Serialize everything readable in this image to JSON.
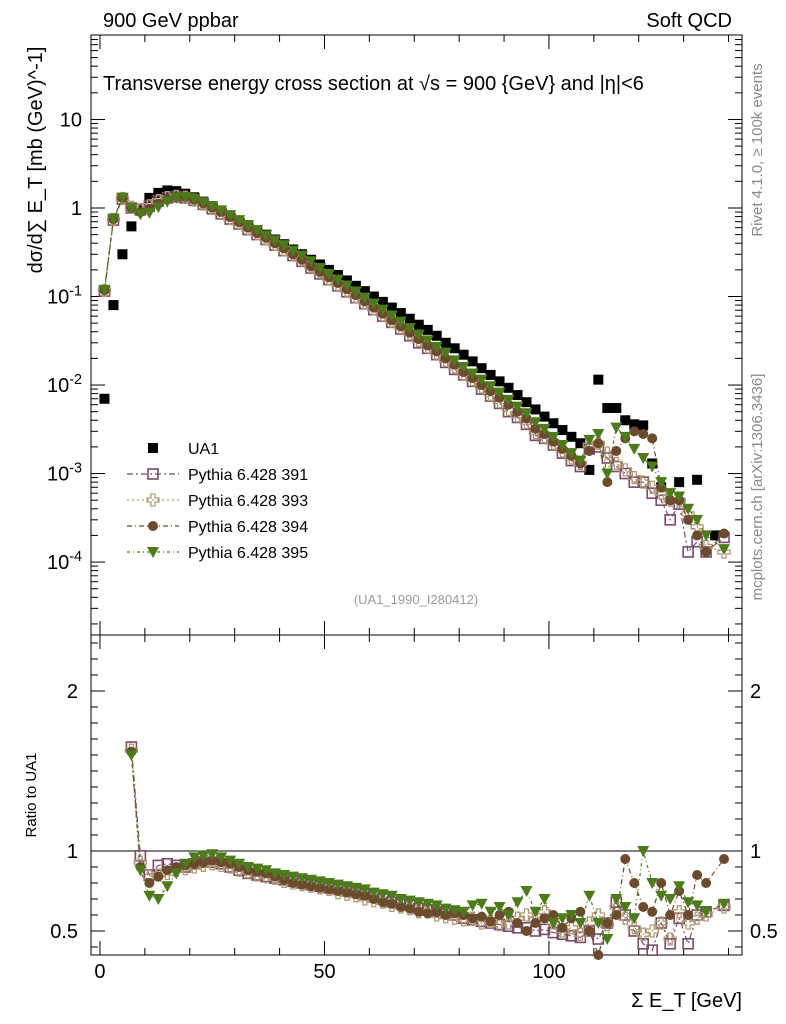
{
  "header": {
    "left": "900 GeV ppbar",
    "right": "Soft QCD"
  },
  "side": {
    "rivet": "Rivet 4.1.0, ≥ 100k events",
    "mcplots": "mcplots.cern.ch [arXiv:1306.3436]"
  },
  "colors": {
    "ua1": "#000000",
    "p391": "#7a4b6a",
    "p393": "#b09a70",
    "p394": "#6b4a2e",
    "p395": "#4d7a1a"
  },
  "chart_data": [
    {
      "panel": "main",
      "type": "scatter",
      "title": "Transverse energy cross section at √s = 900 {GeV} and |η|<6",
      "ylabel": "dσ/d∑ E_T [mb (GeV)^-1]",
      "xlabel": "Σ E_T [GeV]",
      "yscale": "log",
      "xlim": [
        -2,
        143
      ],
      "ylim": [
        1.5e-05,
        90
      ],
      "yticks": [
        {
          "v": 0.0001,
          "label": "10^-4"
        },
        {
          "v": 0.001,
          "label": "10^-3"
        },
        {
          "v": 0.01,
          "label": "10^-2"
        },
        {
          "v": 0.1,
          "label": "10^-1"
        },
        {
          "v": 1,
          "label": "1"
        },
        {
          "v": 10,
          "label": "10"
        }
      ],
      "watermark": "(UA1_1990_I280412)",
      "legend": [
        "UA1",
        "Pythia 6.428 391",
        "Pythia 6.428 393",
        "Pythia 6.428 394",
        "Pythia 6.428 395"
      ],
      "x": [
        1,
        3,
        5,
        7,
        9,
        11,
        13,
        15,
        17,
        19,
        21,
        23,
        25,
        27,
        29,
        31,
        33,
        35,
        37,
        39,
        41,
        43,
        45,
        47,
        49,
        51,
        53,
        55,
        57,
        59,
        61,
        63,
        65,
        67,
        69,
        71,
        73,
        75,
        77,
        79,
        81,
        83,
        85,
        87,
        89,
        91,
        93,
        95,
        97,
        99,
        101,
        103,
        105,
        107,
        109,
        111,
        113,
        115,
        117,
        119,
        121,
        123,
        125,
        127,
        129,
        131,
        133,
        135,
        137,
        139,
        141
      ],
      "series": [
        {
          "name": "UA1",
          "values": [
            0.007,
            0.08,
            0.3,
            0.62,
            0.96,
            1.3,
            1.48,
            1.58,
            1.55,
            1.45,
            1.32,
            1.18,
            1.05,
            0.92,
            0.82,
            0.72,
            0.64,
            0.56,
            0.5,
            0.44,
            0.39,
            0.34,
            0.3,
            0.26,
            0.23,
            0.2,
            0.175,
            0.152,
            0.132,
            0.115,
            0.1,
            0.087,
            0.075,
            0.065,
            0.056,
            0.048,
            0.042,
            0.036,
            0.03,
            0.026,
            0.022,
            0.0185,
            0.0155,
            0.013,
            0.011,
            0.0093,
            0.0077,
            0.0064,
            0.0053,
            0.0044,
            0.0037,
            0.0031,
            0.0026,
            0.0022,
            0.0011,
            0.0115,
            0.0055,
            0.0055,
            0.004,
            0.0036,
            0.0035,
            0.0013,
            0.0007,
            null,
            0.0008,
            null,
            0.00085,
            null,
            0.0002,
            null,
            null
          ]
        },
        {
          "name": "Pythia 6.428 391",
          "values": [
            0.115,
            0.73,
            1.26,
            1.0,
            0.95,
            1.05,
            1.2,
            1.3,
            1.34,
            1.3,
            1.22,
            1.1,
            0.98,
            0.86,
            0.75,
            0.66,
            0.57,
            0.5,
            0.44,
            0.38,
            0.33,
            0.29,
            0.25,
            0.21,
            0.18,
            0.155,
            0.132,
            0.113,
            0.097,
            0.083,
            0.071,
            0.06,
            0.051,
            0.043,
            0.036,
            0.03,
            0.026,
            0.022,
            0.018,
            0.015,
            0.013,
            0.011,
            0.009,
            0.0075,
            0.0062,
            0.005,
            0.0043,
            0.0036,
            0.0027,
            0.0025,
            0.0021,
            0.0017,
            0.0014,
            0.0012,
            0.0019,
            0.002,
            0.0015,
            0.0012,
            0.001,
            0.0008,
            0.0008,
            0.0006,
            0.0005,
            0.0003,
            0.00045,
            0.00013,
            0.00017,
            0.00013,
            null,
            0.00019,
            null
          ]
        },
        {
          "name": "Pythia 6.428 393",
          "values": [
            0.117,
            0.74,
            1.28,
            1.02,
            0.96,
            1.06,
            1.21,
            1.31,
            1.35,
            1.32,
            1.23,
            1.11,
            0.99,
            0.87,
            0.76,
            0.67,
            0.58,
            0.51,
            0.45,
            0.39,
            0.34,
            0.3,
            0.26,
            0.22,
            0.19,
            0.16,
            0.137,
            0.118,
            0.1,
            0.086,
            0.073,
            0.062,
            0.053,
            0.045,
            0.038,
            0.032,
            0.027,
            0.023,
            0.019,
            0.016,
            0.0135,
            0.0115,
            0.0095,
            0.0078,
            0.0065,
            0.0053,
            0.0045,
            0.0038,
            0.0029,
            0.0026,
            0.0022,
            0.0018,
            0.0015,
            0.0013,
            0.0021,
            0.0022,
            0.0017,
            0.0013,
            0.0011,
            0.0009,
            0.0008,
            0.0007,
            0.0006,
            0.0005,
            0.0005,
            0.00035,
            0.00025,
            0.00015,
            null,
            0.00013,
            null
          ]
        },
        {
          "name": "Pythia 6.428 394",
          "values": [
            0.118,
            0.75,
            1.3,
            1.0,
            0.9,
            0.98,
            1.12,
            1.26,
            1.34,
            1.33,
            1.25,
            1.13,
            1.01,
            0.9,
            0.79,
            0.69,
            0.6,
            0.52,
            0.46,
            0.4,
            0.35,
            0.3,
            0.26,
            0.22,
            0.19,
            0.165,
            0.142,
            0.121,
            0.104,
            0.088,
            0.075,
            0.064,
            0.054,
            0.046,
            0.039,
            0.033,
            0.028,
            0.024,
            0.02,
            0.017,
            0.014,
            0.012,
            0.01,
            0.0085,
            0.0072,
            0.006,
            0.005,
            0.0042,
            0.0032,
            0.0028,
            0.0023,
            0.0019,
            0.0016,
            0.0013,
            0.0018,
            0.0022,
            0.0008,
            0.0018,
            0.0025,
            0.003,
            0.0028,
            0.0025,
            0.0007,
            0.0005,
            0.0005,
            0.0003,
            0.0002,
            0.00013,
            null,
            0.00021,
            null
          ]
        },
        {
          "name": "Pythia 6.428 395",
          "values": [
            0.119,
            0.76,
            1.31,
            1.0,
            0.85,
            0.88,
            1.02,
            1.18,
            1.3,
            1.33,
            1.27,
            1.16,
            1.05,
            0.94,
            0.83,
            0.73,
            0.64,
            0.56,
            0.49,
            0.43,
            0.38,
            0.33,
            0.29,
            0.25,
            0.21,
            0.18,
            0.155,
            0.133,
            0.114,
            0.097,
            0.083,
            0.071,
            0.061,
            0.052,
            0.044,
            0.037,
            0.032,
            0.027,
            0.023,
            0.019,
            0.016,
            0.0135,
            0.0115,
            0.0097,
            0.0082,
            0.0068,
            0.0057,
            0.0048,
            0.0038,
            0.0032,
            0.0026,
            0.0021,
            0.0017,
            0.0014,
            0.0024,
            0.0028,
            0.001,
            0.0033,
            0.0026,
            0.0019,
            0.0015,
            0.0012,
            0.0008,
            0.0006,
            0.00055,
            0.0004,
            0.0003,
            0.0002,
            null,
            0.00014,
            null
          ]
        }
      ]
    },
    {
      "panel": "ratio",
      "type": "scatter",
      "ylabel": "Ratio to UA1",
      "xlabel": "Σ E_T [GeV]",
      "xlim": [
        -2,
        143
      ],
      "ylim": [
        0.35,
        2.35
      ],
      "yticks": [
        {
          "v": 0.5,
          "label": "0.5"
        },
        {
          "v": 1,
          "label": "1"
        },
        {
          "v": 2,
          "label": "2"
        }
      ],
      "xticks": [
        {
          "v": 0,
          "label": "0"
        },
        {
          "v": 50,
          "label": "50"
        },
        {
          "v": 100,
          "label": "100"
        }
      ],
      "reference": 1,
      "x": [
        1,
        3,
        5,
        7,
        9,
        11,
        13,
        15,
        17,
        19,
        21,
        23,
        25,
        27,
        29,
        31,
        33,
        35,
        37,
        39,
        41,
        43,
        45,
        47,
        49,
        51,
        53,
        55,
        57,
        59,
        61,
        63,
        65,
        67,
        69,
        71,
        73,
        75,
        77,
        79,
        81,
        83,
        85,
        87,
        89,
        91,
        93,
        95,
        97,
        99,
        101,
        103,
        105,
        107,
        109,
        111,
        113,
        115,
        117,
        119,
        121,
        123,
        125,
        127,
        129,
        131,
        133,
        135,
        137,
        139,
        141
      ],
      "series": [
        {
          "name": "Pythia 6.428 391",
          "values": [
            null,
            null,
            null,
            1.65,
            0.97,
            0.85,
            0.91,
            0.92,
            0.91,
            0.9,
            0.92,
            0.93,
            0.93,
            0.92,
            0.9,
            0.88,
            0.86,
            0.85,
            0.84,
            0.83,
            0.82,
            0.81,
            0.8,
            0.79,
            0.78,
            0.77,
            0.76,
            0.75,
            0.74,
            0.73,
            0.72,
            0.7,
            0.68,
            0.67,
            0.66,
            0.64,
            0.63,
            0.62,
            0.61,
            0.6,
            0.58,
            0.57,
            0.56,
            0.55,
            0.54,
            0.53,
            0.52,
            0.52,
            0.5,
            0.51,
            0.49,
            0.48,
            0.47,
            0.46,
            0.5,
            0.45,
            0.55,
            0.68,
            0.6,
            0.5,
            0.42,
            0.38,
            0.55,
            0.42,
            0.58,
            0.42,
            0.6,
            0.62,
            null,
            0.66,
            null
          ]
        },
        {
          "name": "Pythia 6.428 393",
          "values": [
            null,
            null,
            null,
            1.63,
            0.93,
            0.84,
            0.85,
            0.86,
            0.88,
            0.89,
            0.9,
            0.91,
            0.92,
            0.91,
            0.9,
            0.88,
            0.87,
            0.85,
            0.84,
            0.83,
            0.81,
            0.8,
            0.79,
            0.78,
            0.77,
            0.76,
            0.74,
            0.73,
            0.72,
            0.7,
            0.69,
            0.68,
            0.66,
            0.65,
            0.64,
            0.62,
            0.62,
            0.6,
            0.59,
            0.58,
            0.57,
            0.58,
            0.55,
            0.56,
            0.54,
            0.55,
            0.58,
            0.6,
            0.57,
            0.62,
            0.55,
            0.5,
            0.52,
            0.48,
            0.55,
            0.6,
            0.54,
            0.65,
            0.58,
            0.52,
            0.48,
            0.5,
            0.55,
            0.45,
            0.62,
            0.55,
            0.58,
            0.6,
            null,
            0.65,
            null
          ]
        },
        {
          "name": "Pythia 6.428 394",
          "values": [
            null,
            null,
            null,
            1.62,
            0.9,
            0.8,
            0.84,
            0.88,
            0.9,
            0.91,
            0.92,
            0.93,
            0.94,
            0.93,
            0.92,
            0.9,
            0.88,
            0.87,
            0.86,
            0.84,
            0.82,
            0.8,
            0.79,
            0.78,
            0.77,
            0.76,
            0.75,
            0.74,
            0.73,
            0.72,
            0.7,
            0.68,
            0.67,
            0.65,
            0.64,
            0.62,
            0.61,
            0.62,
            0.6,
            0.61,
            0.6,
            0.58,
            0.59,
            0.56,
            0.6,
            0.62,
            0.55,
            0.5,
            0.55,
            0.58,
            0.6,
            0.52,
            0.58,
            0.62,
            0.5,
            0.35,
            0.55,
            0.6,
            0.95,
            0.8,
            0.65,
            0.62,
            0.8,
            0.6,
            0.75,
            0.6,
            0.85,
            0.8,
            null,
            0.95,
            null
          ]
        },
        {
          "name": "Pythia 6.428 395",
          "values": [
            null,
            null,
            null,
            1.6,
            0.88,
            0.72,
            0.7,
            0.78,
            0.86,
            0.92,
            0.96,
            0.97,
            0.98,
            0.96,
            0.94,
            0.92,
            0.9,
            0.89,
            0.88,
            0.86,
            0.85,
            0.84,
            0.83,
            0.82,
            0.81,
            0.8,
            0.79,
            0.78,
            0.77,
            0.76,
            0.74,
            0.73,
            0.72,
            0.7,
            0.69,
            0.68,
            0.67,
            0.66,
            0.64,
            0.63,
            0.62,
            0.66,
            0.67,
            0.62,
            0.65,
            0.6,
            0.68,
            0.75,
            0.62,
            0.7,
            0.55,
            0.58,
            0.6,
            0.55,
            0.72,
            0.55,
            0.45,
            0.7,
            0.65,
            0.58,
            1.0,
            0.8,
            0.72,
            0.7,
            0.78,
            0.68,
            0.66,
            0.62,
            null,
            0.67,
            null
          ]
        }
      ]
    }
  ]
}
